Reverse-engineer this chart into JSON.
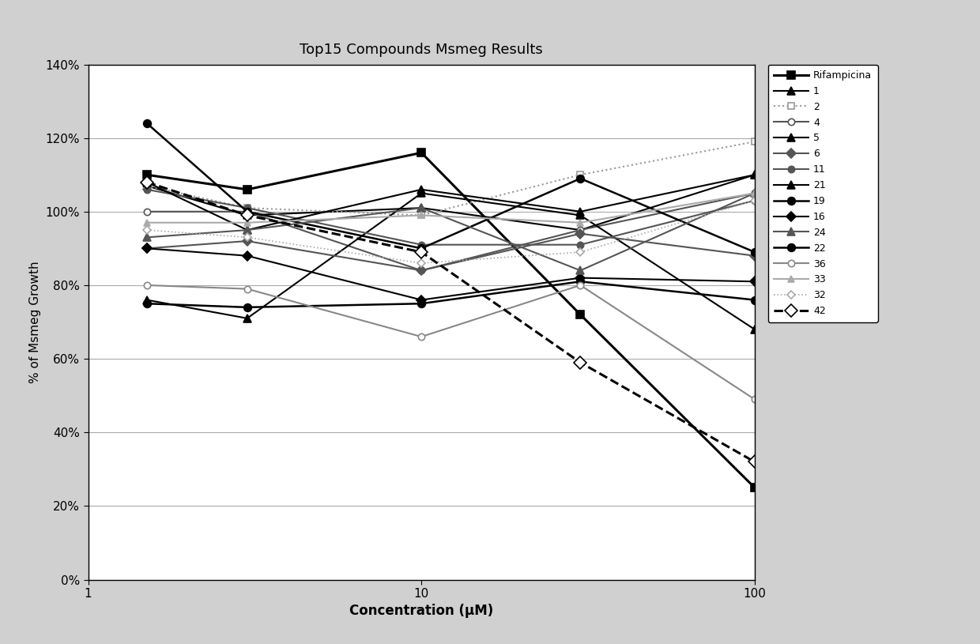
{
  "title": "Top15 Compounds Msmeg Results",
  "xlabel": "Concentration (μM)",
  "ylabel": "% of Msmeg Growth",
  "x_values": [
    1.5,
    3,
    10,
    30,
    100
  ],
  "series": [
    {
      "label": "Rifampicina",
      "color": "#000000",
      "linestyle": "-",
      "linewidth": 2.2,
      "marker": "s",
      "markersize": 7,
      "markerfacecolor": "#000000",
      "markeredgecolor": "#000000",
      "y": [
        1.1,
        1.06,
        1.16,
        0.72,
        0.25
      ]
    },
    {
      "label": "1",
      "color": "#000000",
      "linestyle": "-",
      "linewidth": 1.5,
      "marker": "^",
      "markersize": 7,
      "markerfacecolor": "#000000",
      "markeredgecolor": "#000000",
      "y": [
        1.07,
        0.99,
        1.01,
        0.95,
        1.1
      ]
    },
    {
      "label": "2",
      "color": "#999999",
      "linestyle": ":",
      "linewidth": 1.5,
      "marker": "s",
      "markersize": 6,
      "markerfacecolor": "#ffffff",
      "markeredgecolor": "#999999",
      "y": [
        1.07,
        1.01,
        0.99,
        1.1,
        1.19
      ]
    },
    {
      "label": "4",
      "color": "#555555",
      "linestyle": "-",
      "linewidth": 1.5,
      "marker": "o",
      "markersize": 6,
      "markerfacecolor": "#ffffff",
      "markeredgecolor": "#555555",
      "y": [
        1.0,
        1.0,
        0.84,
        0.95,
        1.05
      ]
    },
    {
      "label": "5",
      "color": "#000000",
      "linestyle": "-",
      "linewidth": 1.5,
      "marker": "^",
      "markersize": 7,
      "markerfacecolor": "#000000",
      "markeredgecolor": "#000000",
      "y": [
        0.76,
        0.71,
        1.05,
        0.99,
        0.68
      ]
    },
    {
      "label": "6",
      "color": "#555555",
      "linestyle": "-",
      "linewidth": 1.5,
      "marker": "D",
      "markersize": 6,
      "markerfacecolor": "#555555",
      "markeredgecolor": "#555555",
      "y": [
        0.9,
        0.92,
        0.84,
        0.94,
        0.88
      ]
    },
    {
      "label": "11",
      "color": "#555555",
      "linestyle": "-",
      "linewidth": 1.5,
      "marker": "o",
      "markersize": 6,
      "markerfacecolor": "#555555",
      "markeredgecolor": "#555555",
      "y": [
        1.06,
        1.01,
        0.91,
        0.91,
        1.03
      ]
    },
    {
      "label": "21",
      "color": "#000000",
      "linestyle": "-",
      "linewidth": 1.5,
      "marker": "^",
      "markersize": 7,
      "markerfacecolor": "#000000",
      "markeredgecolor": "#000000",
      "y": [
        1.08,
        0.95,
        1.06,
        1.0,
        1.1
      ]
    },
    {
      "label": "19",
      "color": "#000000",
      "linestyle": "-",
      "linewidth": 1.8,
      "marker": "o",
      "markersize": 7,
      "markerfacecolor": "#000000",
      "markeredgecolor": "#000000",
      "y": [
        1.24,
        1.0,
        0.9,
        1.09,
        0.89
      ]
    },
    {
      "label": "16",
      "color": "#000000",
      "linestyle": "-",
      "linewidth": 1.5,
      "marker": "D",
      "markersize": 6,
      "markerfacecolor": "#000000",
      "markeredgecolor": "#000000",
      "y": [
        0.9,
        0.88,
        0.76,
        0.82,
        0.81
      ]
    },
    {
      "label": "24",
      "color": "#555555",
      "linestyle": "-",
      "linewidth": 1.5,
      "marker": "^",
      "markersize": 7,
      "markerfacecolor": "#555555",
      "markeredgecolor": "#555555",
      "y": [
        0.93,
        0.95,
        1.01,
        0.84,
        1.05
      ]
    },
    {
      "label": "22",
      "color": "#000000",
      "linestyle": "-",
      "linewidth": 1.8,
      "marker": "o",
      "markersize": 7,
      "markerfacecolor": "#000000",
      "markeredgecolor": "#000000",
      "y": [
        0.75,
        0.74,
        0.75,
        0.81,
        0.76
      ]
    },
    {
      "label": "36",
      "color": "#888888",
      "linestyle": "-",
      "linewidth": 1.5,
      "marker": "o",
      "markersize": 6,
      "markerfacecolor": "#ffffff",
      "markeredgecolor": "#888888",
      "y": [
        0.8,
        0.79,
        0.66,
        0.8,
        0.49
      ]
    },
    {
      "label": "33",
      "color": "#aaaaaa",
      "linestyle": "-",
      "linewidth": 1.5,
      "marker": "^",
      "markersize": 6,
      "markerfacecolor": "#aaaaaa",
      "markeredgecolor": "#aaaaaa",
      "y": [
        0.97,
        0.97,
        0.99,
        0.97,
        1.05
      ]
    },
    {
      "label": "32",
      "color": "#aaaaaa",
      "linestyle": ":",
      "linewidth": 1.2,
      "marker": "D",
      "markersize": 5,
      "markerfacecolor": "#ffffff",
      "markeredgecolor": "#aaaaaa",
      "y": [
        0.95,
        0.93,
        0.86,
        0.89,
        1.03
      ]
    },
    {
      "label": "42",
      "color": "#000000",
      "linestyle": "--",
      "linewidth": 2.2,
      "marker": "D",
      "markersize": 8,
      "markerfacecolor": "#ffffff",
      "markeredgecolor": "#000000",
      "y": [
        1.08,
        0.99,
        0.89,
        0.59,
        0.32
      ]
    }
  ],
  "ylim": [
    0.0,
    1.4
  ],
  "yticks": [
    0.0,
    0.2,
    0.4,
    0.6,
    0.8,
    1.0,
    1.2,
    1.4
  ],
  "ytick_labels": [
    "0%",
    "20%",
    "40%",
    "60%",
    "80%",
    "100%",
    "120%",
    "140%"
  ],
  "outer_background": "#d0d0d0",
  "plot_background": "#ffffff",
  "grid_color": "#aaaaaa"
}
